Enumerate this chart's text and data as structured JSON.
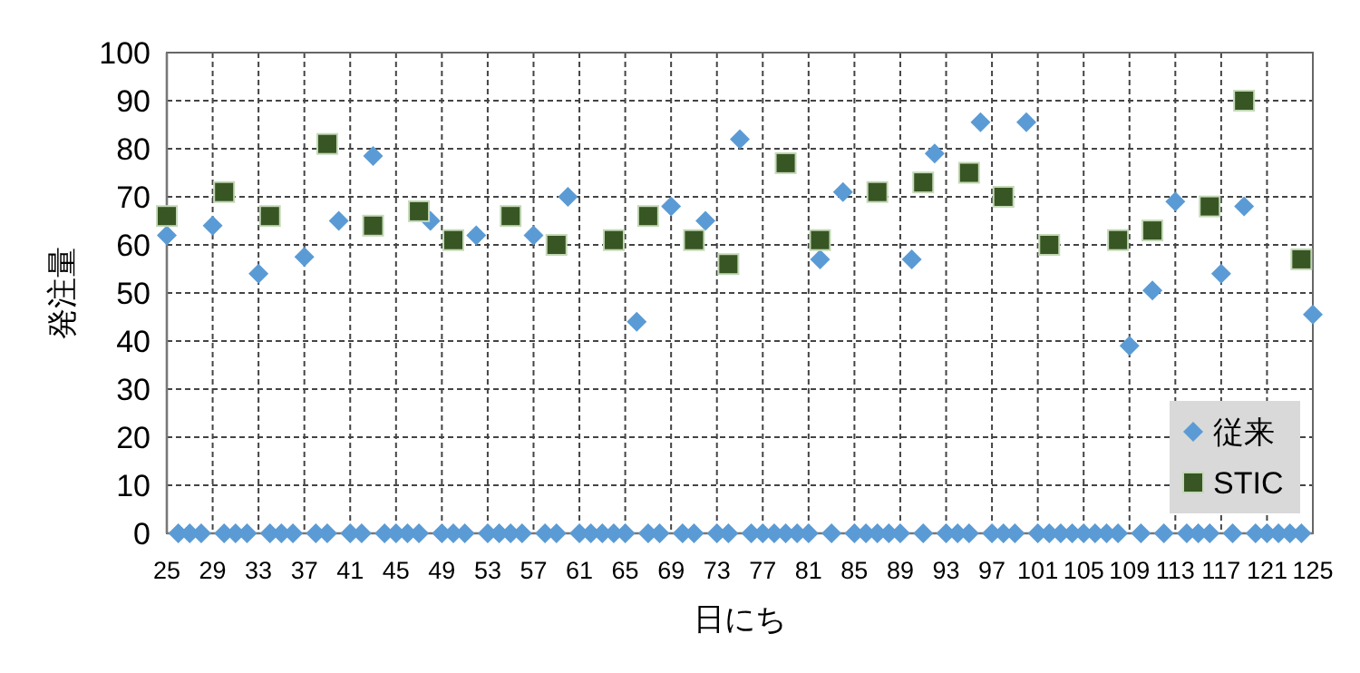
{
  "chart_data": {
    "type": "scatter",
    "xlabel": "日にち",
    "ylabel": "発注量",
    "xlim": [
      25,
      125
    ],
    "xticks": [
      25,
      29,
      33,
      37,
      41,
      45,
      49,
      53,
      57,
      61,
      65,
      69,
      73,
      77,
      81,
      85,
      89,
      93,
      97,
      101,
      105,
      109,
      113,
      117,
      121,
      125
    ],
    "ylim": [
      0,
      100
    ],
    "yticks": [
      0,
      10,
      20,
      30,
      40,
      50,
      60,
      70,
      80,
      90,
      100
    ],
    "grid": true,
    "legend": "bottom right",
    "series": [
      {
        "name": "従来",
        "color": "#5b9bd5",
        "marker": "diamond",
        "x": [
          25,
          26,
          27,
          28,
          29,
          30,
          31,
          32,
          33,
          34,
          35,
          36,
          37,
          38,
          39,
          40,
          41,
          42,
          43,
          44,
          45,
          46,
          47,
          48,
          49,
          50,
          51,
          52,
          53,
          54,
          55,
          56,
          57,
          58,
          59,
          60,
          61,
          62,
          63,
          64,
          65,
          66,
          67,
          68,
          69,
          70,
          71,
          72,
          73,
          74,
          75,
          76,
          77,
          78,
          79,
          80,
          81,
          82,
          83,
          84,
          85,
          86,
          87,
          88,
          89,
          90,
          91,
          92,
          93,
          94,
          95,
          96,
          97,
          98,
          99,
          100,
          101,
          102,
          103,
          104,
          105,
          106,
          107,
          108,
          109,
          110,
          111,
          112,
          113,
          114,
          115,
          116,
          117,
          118,
          119,
          120,
          121,
          122,
          123,
          124,
          125
        ],
        "values": [
          62,
          0,
          0,
          0,
          64,
          0,
          0,
          0,
          54,
          0,
          0,
          0,
          57.5,
          0,
          0,
          65,
          0,
          0,
          78.5,
          0,
          0,
          0,
          0,
          65,
          0,
          0,
          0,
          62,
          0,
          0,
          0,
          0,
          62,
          0,
          0,
          70,
          0,
          0,
          0,
          0,
          0,
          44,
          0,
          0,
          68,
          0,
          0,
          65,
          0,
          0,
          82,
          0,
          0,
          0,
          0,
          0,
          0,
          57,
          0,
          71,
          0,
          0,
          0,
          0,
          0,
          57,
          0,
          79,
          0,
          0,
          0,
          85.5,
          0,
          0,
          0,
          85.5,
          0,
          0,
          0,
          0,
          0,
          0,
          0,
          0,
          39,
          0,
          50.5,
          0,
          69,
          0,
          0,
          0,
          54,
          0,
          68,
          0,
          0,
          0,
          0,
          0,
          45.5
        ]
      },
      {
        "name": "STIC",
        "color": "#375623",
        "marker": "square",
        "x": [
          25,
          30,
          34,
          39,
          43,
          47,
          50,
          55,
          59,
          64,
          67,
          71,
          74,
          79,
          82,
          87,
          91,
          95,
          98,
          102,
          108,
          111,
          116,
          119,
          124
        ],
        "values": [
          66,
          71,
          66,
          81,
          64,
          67,
          61,
          66,
          60,
          61,
          66,
          61,
          56,
          77,
          61,
          71,
          73,
          75,
          70,
          60,
          61,
          63,
          68,
          90,
          57
        ]
      }
    ]
  }
}
